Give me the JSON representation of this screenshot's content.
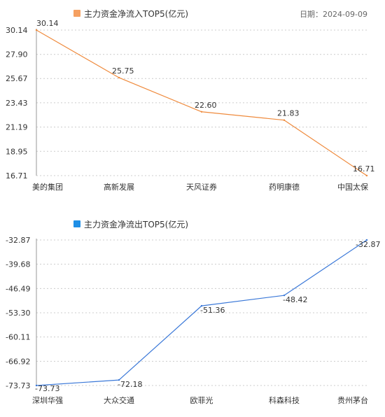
{
  "date_label": "日期：2024-09-09",
  "chart_data": [
    {
      "type": "line",
      "title": "主力资金净流入TOP5(亿元)",
      "legend_color": "#f5a061",
      "line_color": "#ef8a3c",
      "categories": [
        "美的集团",
        "高新发展",
        "天风证券",
        "药明康德",
        "中国太保"
      ],
      "values": [
        30.14,
        25.75,
        22.6,
        21.83,
        16.71
      ],
      "value_labels": [
        "30.14",
        "25.75",
        "22.60",
        "21.83",
        "16.71"
      ],
      "yticks": [
        "30.14",
        "27.90",
        "25.67",
        "23.43",
        "21.19",
        "18.95",
        "16.71"
      ],
      "ylim": [
        16.71,
        30.14
      ],
      "grid": true
    },
    {
      "type": "line",
      "title": "主力资金净流出TOP5(亿元)",
      "legend_color": "#1f8fe6",
      "line_color": "#3a78d8",
      "categories": [
        "深圳华强",
        "大众交通",
        "欧菲光",
        "科森科技",
        "贵州茅台"
      ],
      "values": [
        -73.73,
        -72.18,
        -51.36,
        -48.42,
        -32.87
      ],
      "value_labels": [
        "-73.73",
        "-72.18",
        "-51.36",
        "-48.42",
        "-32.87"
      ],
      "yticks": [
        "-32.87",
        "-39.68",
        "-46.49",
        "-53.30",
        "-60.11",
        "-66.92",
        "-73.73"
      ],
      "ylim": [
        -73.73,
        -32.87
      ],
      "grid": true
    }
  ]
}
